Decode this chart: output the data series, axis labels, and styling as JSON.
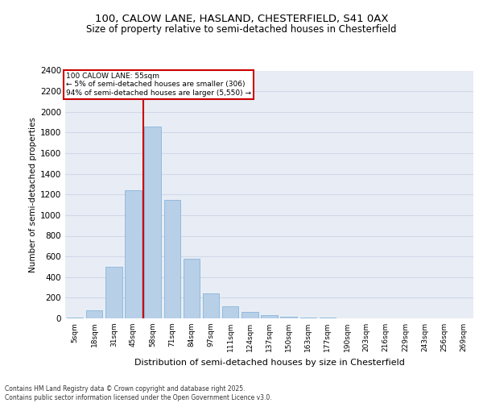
{
  "title1": "100, CALOW LANE, HASLAND, CHESTERFIELD, S41 0AX",
  "title2": "Size of property relative to semi-detached houses in Chesterfield",
  "xlabel": "Distribution of semi-detached houses by size in Chesterfield",
  "ylabel": "Number of semi-detached properties",
  "categories": [
    "5sqm",
    "18sqm",
    "31sqm",
    "45sqm",
    "58sqm",
    "71sqm",
    "84sqm",
    "97sqm",
    "111sqm",
    "124sqm",
    "137sqm",
    "150sqm",
    "163sqm",
    "177sqm",
    "190sqm",
    "203sqm",
    "216sqm",
    "229sqm",
    "243sqm",
    "256sqm",
    "269sqm"
  ],
  "bar_values": [
    5,
    75,
    500,
    1240,
    1860,
    1150,
    580,
    245,
    115,
    60,
    35,
    15,
    5,
    5,
    0,
    0,
    0,
    0,
    0,
    0,
    0
  ],
  "bar_color": "#b8cfe8",
  "bar_edge_color": "#7aaed6",
  "red_line_x": 3.5,
  "annotation_title": "100 CALOW LANE: 55sqm",
  "annotation_line1": "← 5% of semi-detached houses are smaller (306)",
  "annotation_line2": "94% of semi-detached houses are larger (5,550) →",
  "annotation_box_color": "#ffffff",
  "annotation_border_color": "#cc0000",
  "red_line_color": "#cc0000",
  "ylim": [
    0,
    2400
  ],
  "yticks": [
    0,
    200,
    400,
    600,
    800,
    1000,
    1200,
    1400,
    1600,
    1800,
    2000,
    2200,
    2400
  ],
  "background_color": "#e8edf5",
  "grid_color": "#d0d8e8",
  "footer_line1": "Contains HM Land Registry data © Crown copyright and database right 2025.",
  "footer_line2": "Contains public sector information licensed under the Open Government Licence v3.0."
}
